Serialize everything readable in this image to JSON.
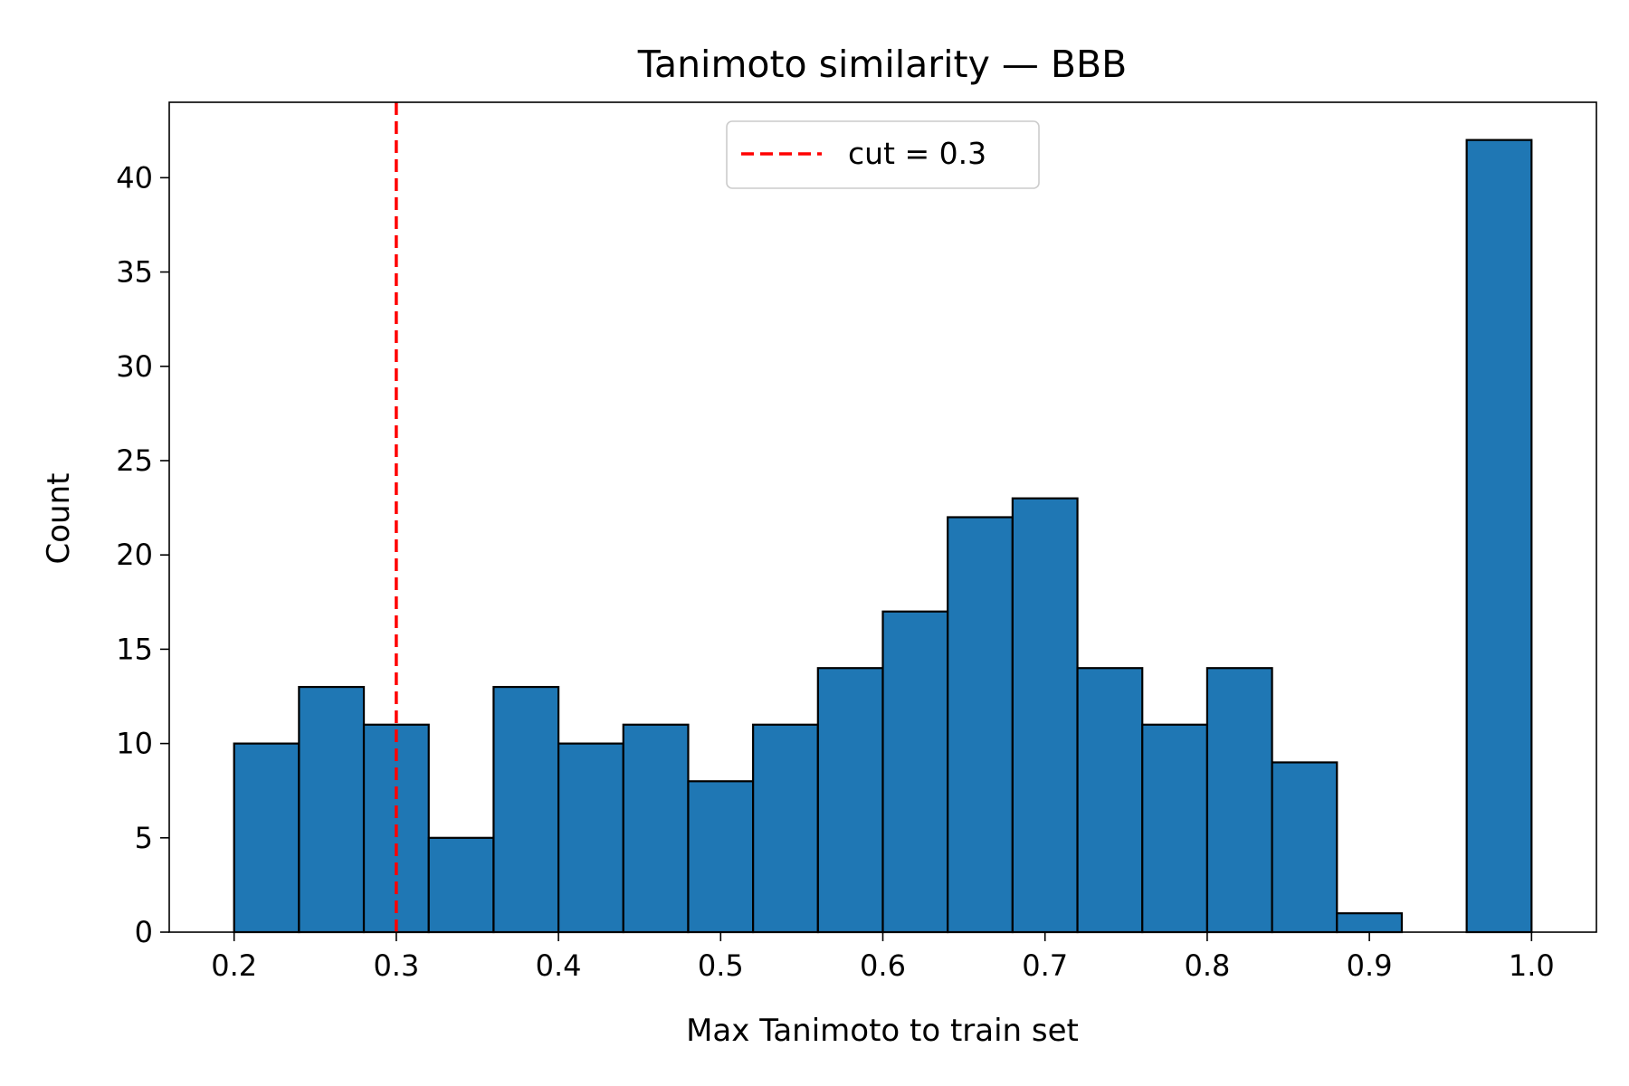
{
  "chart_data": {
    "type": "bar",
    "subtype": "histogram",
    "title": "Tanimoto similarity — BBB",
    "xlabel": "Max Tanimoto to train set",
    "ylabel": "Count",
    "xlim": [
      0.16,
      1.04
    ],
    "ylim": [
      0,
      44
    ],
    "xticks": [
      0.2,
      0.3,
      0.4,
      0.5,
      0.6,
      0.7,
      0.8,
      0.9,
      1.0
    ],
    "xtick_labels": [
      "0.2",
      "0.3",
      "0.4",
      "0.5",
      "0.6",
      "0.7",
      "0.8",
      "0.9",
      "1.0"
    ],
    "yticks": [
      0,
      5,
      10,
      15,
      20,
      25,
      30,
      35,
      40
    ],
    "ytick_labels": [
      "0",
      "5",
      "10",
      "15",
      "20",
      "25",
      "30",
      "35",
      "40"
    ],
    "bin_edges": [
      0.2,
      0.24,
      0.28,
      0.32,
      0.36,
      0.4,
      0.44,
      0.48,
      0.52,
      0.56,
      0.6,
      0.64,
      0.68,
      0.72,
      0.76,
      0.8,
      0.84,
      0.88,
      0.92,
      0.96,
      1.0
    ],
    "values": [
      10,
      13,
      11,
      5,
      13,
      10,
      11,
      8,
      11,
      14,
      17,
      22,
      23,
      14,
      11,
      14,
      9,
      1,
      0,
      42
    ],
    "bar_color": "#1f77b4",
    "edge_color": "#000000",
    "cut_line": {
      "x": 0.3,
      "color": "#ff0000",
      "style": "dashed",
      "label": "cut = 0.3"
    },
    "legend_position": "upper center",
    "grid": false
  }
}
